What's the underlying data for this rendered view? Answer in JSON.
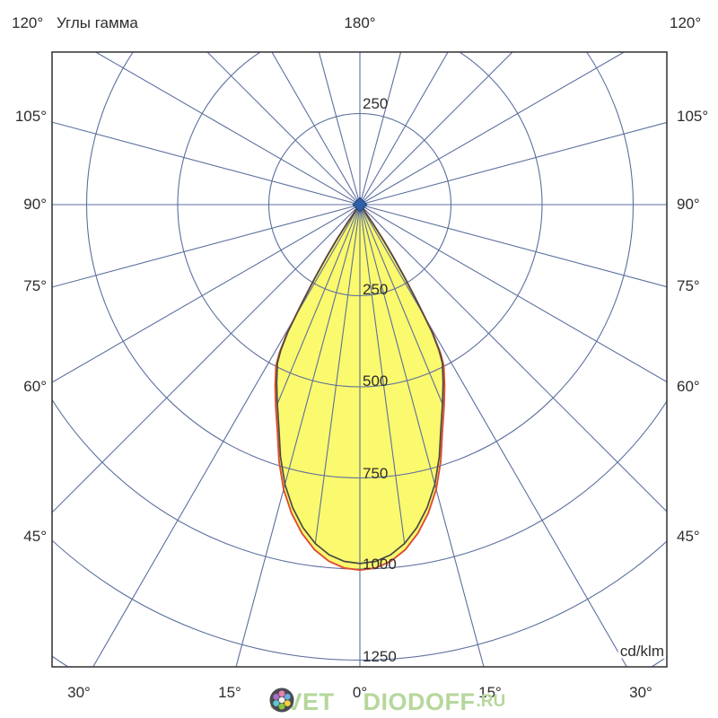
{
  "header": {
    "corner_label_left": "120°",
    "title": "Углы гамма",
    "top_label": "180°",
    "corner_label_right": "120°"
  },
  "axes": {
    "gamma_side_labels": [
      "105°",
      "90°",
      "75°",
      "60°",
      "45°"
    ],
    "bottom_labels": [
      "30°",
      "15°",
      "0°",
      "15°",
      "30°"
    ],
    "radius_labels": [
      "250",
      "250",
      "500",
      "750",
      "1000",
      "1250"
    ],
    "unit_label": "cd/klm"
  },
  "watermark": {
    "part1": "SVET",
    "part2": "DIODOFF",
    "part3": ".RU",
    "text_color": "#b6d79b",
    "logo_circle_color": "#4b4a52",
    "logo_dot_colors": [
      "#f2f0ea",
      "#e77fb3",
      "#6aaede",
      "#f2d13f",
      "#8dc63f",
      "#5bc8d2",
      "#a86fc9"
    ]
  },
  "colors": {
    "grid": "#5c6f9e",
    "plot_border": "#3c3c3c",
    "beam_fill": "#fbf96d",
    "curve_main": "#4b4b45",
    "curve_red": "#dd4e33",
    "center_marker": "#2f5fa5",
    "text": "#2d2d2d"
  },
  "chart_data": {
    "type": "polar-photometric",
    "title": "Углы гамма",
    "unit": "cd/klm",
    "angle_tick_step_deg": 15,
    "angle_ticks_deg": [
      0,
      15,
      30,
      45,
      60,
      75,
      90,
      105,
      120,
      135,
      150,
      165,
      180
    ],
    "fine_angle_ticks_deg": [
      7.5,
      22.5
    ],
    "radius_ticks": [
      250,
      500,
      750,
      1000,
      1250
    ],
    "radius_gridlines": [
      250,
      500,
      750,
      1000,
      1250,
      1500
    ],
    "symmetric": true,
    "peak_intensity_cd_klm": 985,
    "gamma_deg": [
      0,
      2.5,
      5,
      7.5,
      10,
      12.5,
      15,
      17.5,
      20,
      22.5,
      25,
      27.5,
      28.5,
      29.5,
      30.5,
      31.5,
      32.5,
      33.5,
      34.5,
      35.5,
      36
    ],
    "series": [
      {
        "name": "C0-C180",
        "color": "#4b4b45",
        "values": [
          985,
          980,
          965,
          938,
          900,
          852,
          795,
          725,
          650,
          592,
          540,
          490,
          455,
          400,
          310,
          235,
          170,
          115,
          62,
          20,
          0
        ]
      },
      {
        "name": "C90-C270",
        "color": "#dd4e33",
        "values": [
          1003,
          998,
          982,
          955,
          916,
          867,
          809,
          738,
          662,
          603,
          550,
          499,
          463,
          407,
          316,
          239,
          173,
          117,
          63,
          20,
          0
        ]
      }
    ]
  }
}
